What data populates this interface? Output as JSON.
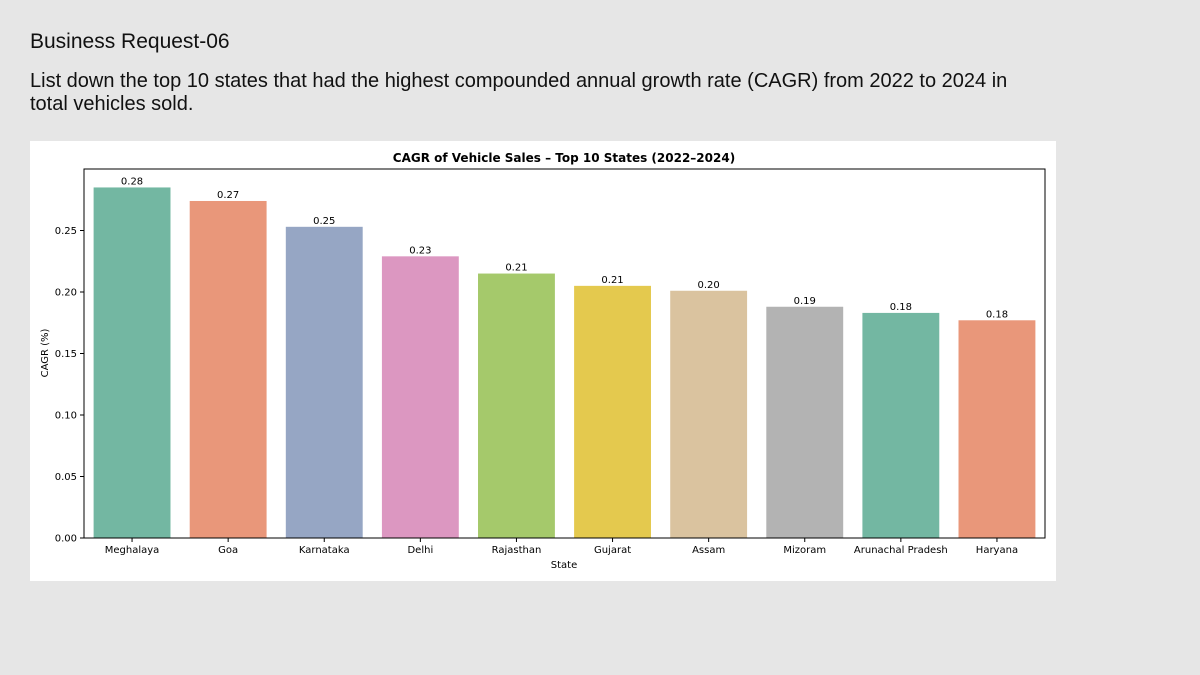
{
  "slide": {
    "title": "Business Request-06",
    "description": "List down the top 10 states that had the highest compounded annual growth rate (CAGR) from 2022 to 2024 in total vehicles sold."
  },
  "chart_data": {
    "type": "bar",
    "title": "CAGR of Vehicle Sales – Top 10 States (2022–2024)",
    "xlabel": "State",
    "ylabel": "CAGR (%)",
    "categories": [
      "Meghalaya",
      "Goa",
      "Karnataka",
      "Delhi",
      "Rajasthan",
      "Gujarat",
      "Assam",
      "Mizoram",
      "Arunachal Pradesh",
      "Haryana"
    ],
    "values": [
      0.285,
      0.274,
      0.253,
      0.229,
      0.215,
      0.205,
      0.201,
      0.188,
      0.183,
      0.177
    ],
    "data_labels": [
      "0.28",
      "0.27",
      "0.25",
      "0.23",
      "0.21",
      "0.21",
      "0.20",
      "0.19",
      "0.18",
      "0.18"
    ],
    "yticks": [
      "0.00",
      "0.05",
      "0.10",
      "0.15",
      "0.20",
      "0.25"
    ],
    "ylim": [
      0,
      0.3
    ],
    "grid": false,
    "legend": "none",
    "colors": [
      "#73b7a2",
      "#e9977a",
      "#96a6c4",
      "#dc97c1",
      "#a5c96b",
      "#e4c94e",
      "#dac39f",
      "#b3b3b3",
      "#73b7a2",
      "#e9977a"
    ]
  }
}
